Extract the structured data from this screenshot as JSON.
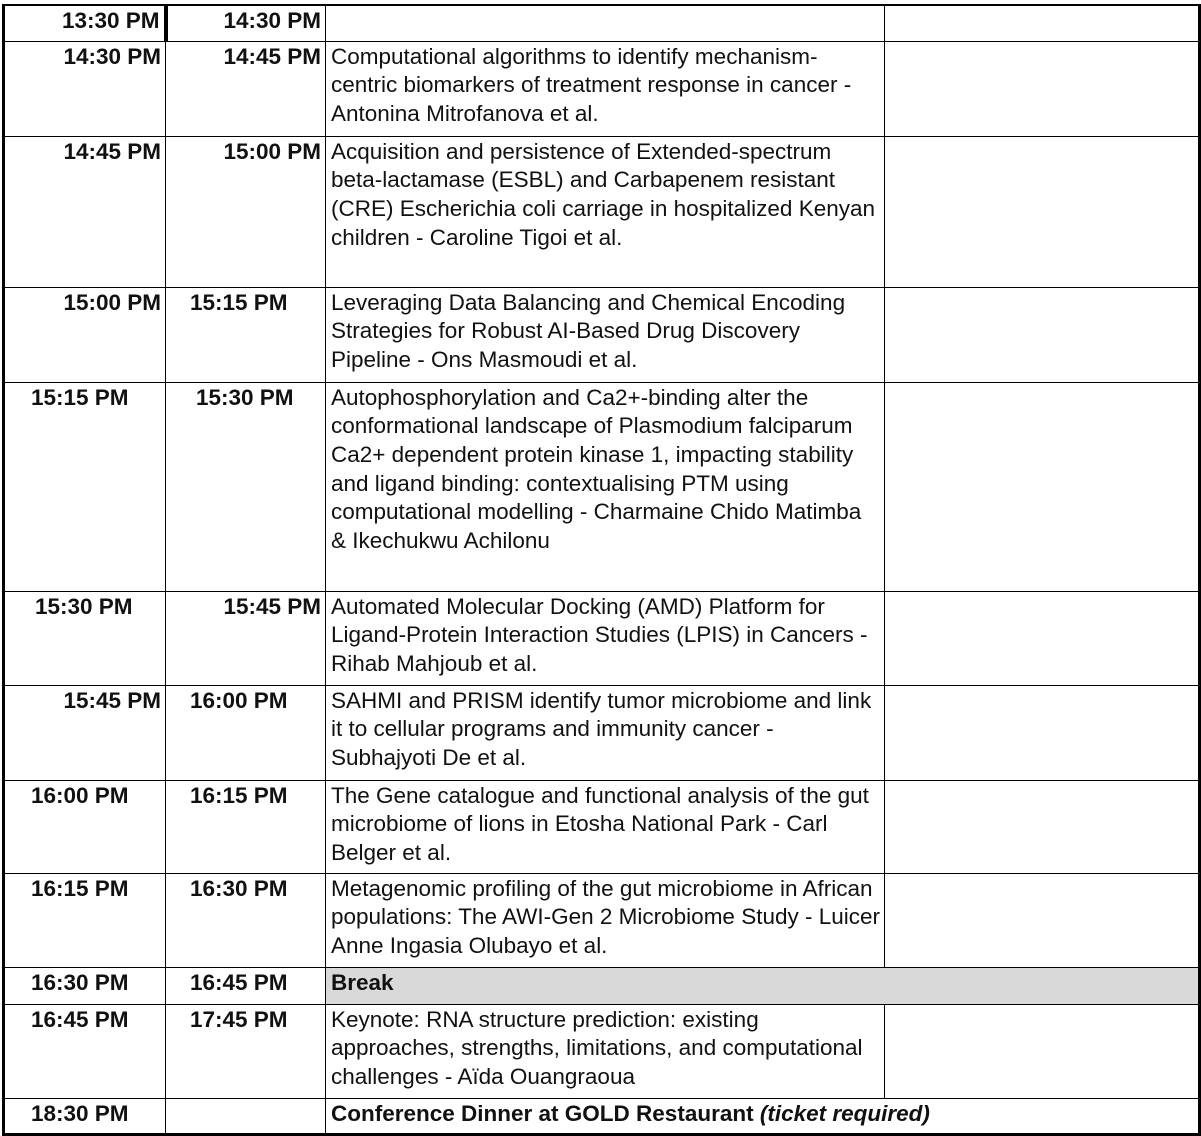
{
  "rows": [
    {
      "start": "13:30 PM",
      "end": "14:30 PM",
      "title": "",
      "align": [
        "r",
        "r"
      ]
    },
    {
      "start": "14:30 PM",
      "end": "14:45 PM",
      "title": "Computational algorithms to identify mechanism-centric biomarkers of treatment response in cancer - Antonina Mitrofanova et al.",
      "align": [
        "r",
        "r"
      ]
    },
    {
      "start": "14:45 PM",
      "end": "15:00 PM",
      "title": "Acquisition and persistence of Extended-spectrum beta-lactamase (ESBL) and Carbapenem resistant (CRE) Escherichia coli carriage in hospitalized Kenyan children - Caroline Tigoi et al.",
      "align": [
        "r",
        "r"
      ]
    },
    {
      "start": "15:00 PM",
      "end": "15:15 PM",
      "title": "Leveraging Data Balancing and Chemical Encoding Strategies for Robust AI-Based Drug Discovery Pipeline - Ons Masmoudi et al.",
      "align": [
        "r",
        "l2"
      ]
    },
    {
      "start": "15:15 PM",
      "end": "15:30 PM",
      "title": "Autophosphorylation and Ca2+-binding alter the conformational landscape of Plasmodium falciparum Ca2+ dependent protein kinase 1, impacting stability and ligand binding: contextualising PTM using computational modelling - Charmaine Chido Matimba & Ikechukwu Achilonu",
      "align": [
        "l1",
        "l3"
      ]
    },
    {
      "start": "15:30 PM",
      "end": "15:45 PM",
      "title": "Automated Molecular Docking (AMD) Platform for Ligand-Protein Interaction Studies (LPIS) in Cancers - Rihab Mahjoub et al.",
      "align": [
        "l3",
        "r"
      ]
    },
    {
      "start": "15:45 PM",
      "end": "16:00 PM",
      "title": "SAHMI and PRISM identify tumor microbiome and link it to cellular programs and immunity cancer - Subhajyoti De et al.",
      "align": [
        "r",
        "l2"
      ]
    },
    {
      "start": "16:00 PM",
      "end": "16:15 PM",
      "title": "The Gene catalogue and functional analysis of the gut microbiome of lions in Etosha National Park - Carl Belger et al.",
      "align": [
        "l1",
        "l2"
      ]
    },
    {
      "start": "16:15 PM",
      "end": "16:30 PM",
      "title": "Metagenomic profiling of the gut microbiome in African populations: The AWI-Gen 2 Microbiome Study - Luicer Anne Ingasia Olubayo et al.",
      "align": [
        "l1",
        "l2"
      ]
    },
    {
      "start": "16:30 PM",
      "end": "16:45 PM",
      "title": "Break",
      "align": [
        "l1",
        "l2"
      ],
      "type": "break"
    },
    {
      "start": "16:45 PM",
      "end": "17:45 PM",
      "title": "Keynote: RNA structure prediction: existing approaches, strengths, limitations, and computational challenges - Aïda Ouangraoua",
      "align": [
        "l1",
        "l2"
      ]
    },
    {
      "start": "18:30 PM",
      "end": "",
      "title": "Conference Dinner at GOLD Restaurant",
      "note": "(ticket required)",
      "align": [
        "l1",
        "l2"
      ],
      "type": "dinner"
    }
  ],
  "colors": {
    "break_bg": "#d9d9d9",
    "border": "#000000"
  }
}
